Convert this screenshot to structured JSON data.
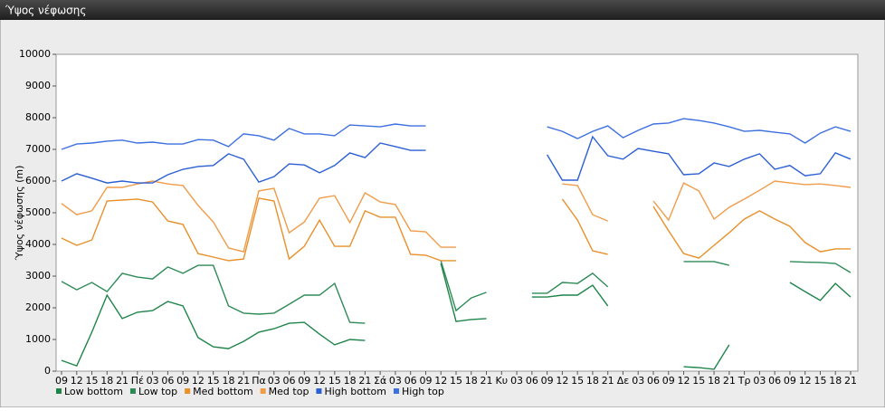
{
  "chart_data": {
    "type": "line",
    "title": "Ύψος νέφωσης",
    "y_label": "Ύψος νέφωσης (m)",
    "categories": [
      "09",
      "12",
      "15",
      "18",
      "21",
      "Πέ",
      "03",
      "06",
      "09",
      "12",
      "15",
      "18",
      "21",
      "Πα",
      "03",
      "06",
      "09",
      "12",
      "15",
      "18",
      "21",
      "Σά",
      "03",
      "06",
      "09",
      "12",
      "15",
      "18",
      "21",
      "Κυ",
      "03",
      "06",
      "09",
      "12",
      "15",
      "18",
      "21",
      "Δε",
      "03",
      "06",
      "09",
      "12",
      "15",
      "18",
      "21",
      "Τρ",
      "03",
      "06",
      "09",
      "12",
      "15",
      "18",
      "21"
    ],
    "ylim": [
      0,
      10000
    ],
    "yticks": [
      0,
      1000,
      2000,
      3000,
      4000,
      5000,
      6000,
      7000,
      8000,
      9000,
      10000
    ],
    "grid": false,
    "series": [
      {
        "name": "Low bottom",
        "color": "#1e8449",
        "values": [
          340,
          170,
          1230,
          2400,
          1660,
          1860,
          1910,
          2200,
          2060,
          1060,
          770,
          710,
          940,
          1230,
          1340,
          1510,
          1540,
          1170,
          830,
          1000,
          970,
          null,
          null,
          null,
          null,
          3400,
          1570,
          1630,
          1660,
          null,
          null,
          2340,
          2340,
          2400,
          2400,
          2710,
          2060,
          null,
          null,
          null,
          null,
          140,
          110,
          60,
          830,
          null,
          null,
          null,
          2800,
          2510,
          2230,
          2770,
          2340
        ]
      },
      {
        "name": "Low top",
        "color": "#2e8b57",
        "values": [
          2830,
          2570,
          2800,
          2510,
          3090,
          2970,
          2910,
          3290,
          3090,
          3340,
          3340,
          2060,
          1830,
          1800,
          1830,
          2110,
          2400,
          2400,
          2770,
          1540,
          1510,
          null,
          null,
          null,
          null,
          3490,
          1910,
          2310,
          2490,
          null,
          null,
          2460,
          2460,
          2800,
          2770,
          3090,
          2660,
          null,
          null,
          null,
          null,
          3460,
          3460,
          3460,
          3340,
          null,
          null,
          null,
          3460,
          3440,
          3430,
          3400,
          3110
        ]
      },
      {
        "name": "Med bottom",
        "color": "#e8902a",
        "values": [
          4200,
          3970,
          4140,
          5370,
          5400,
          5430,
          5340,
          4740,
          4630,
          3710,
          3600,
          3490,
          3540,
          5460,
          5370,
          3540,
          3940,
          4770,
          3940,
          3940,
          5060,
          4860,
          4860,
          3690,
          3660,
          3490,
          3490,
          null,
          null,
          null,
          null,
          null,
          null,
          5430,
          4770,
          3800,
          3690,
          null,
          null,
          5200,
          4430,
          3710,
          3570,
          3970,
          4370,
          4800,
          5060,
          4800,
          4570,
          4060,
          3770,
          3860,
          3860
        ]
      },
      {
        "name": "Med top",
        "color": "#f09c4a",
        "values": [
          5290,
          4940,
          5060,
          5800,
          5800,
          5910,
          6000,
          5910,
          5860,
          5230,
          4710,
          3890,
          3770,
          5690,
          5770,
          4370,
          4710,
          5460,
          5540,
          4690,
          5630,
          5340,
          5260,
          4430,
          4400,
          3910,
          3910,
          null,
          null,
          null,
          null,
          null,
          null,
          5910,
          5860,
          4940,
          4740,
          null,
          null,
          5370,
          4770,
          5940,
          5690,
          4800,
          5170,
          5430,
          5710,
          6000,
          5940,
          5890,
          5910,
          5860,
          5800
        ]
      },
      {
        "name": "High bottom",
        "color": "#2b5fd4",
        "values": [
          6000,
          6230,
          6090,
          5940,
          6000,
          5940,
          5940,
          6200,
          6370,
          6460,
          6490,
          6860,
          6690,
          5970,
          6140,
          6540,
          6510,
          6260,
          6490,
          6890,
          6740,
          7200,
          7090,
          6970,
          6970,
          null,
          null,
          null,
          null,
          null,
          null,
          null,
          6830,
          6030,
          6030,
          7400,
          6800,
          6690,
          7030,
          6940,
          6860,
          6200,
          6230,
          6570,
          6460,
          6690,
          6860,
          6370,
          6490,
          6170,
          6230,
          6890,
          6690
        ]
      },
      {
        "name": "High top",
        "color": "#3d70e0",
        "values": [
          7000,
          7170,
          7200,
          7260,
          7290,
          7200,
          7230,
          7170,
          7170,
          7310,
          7290,
          7090,
          7490,
          7430,
          7290,
          7660,
          7490,
          7490,
          7430,
          7770,
          7740,
          7710,
          7800,
          7740,
          7740,
          null,
          null,
          null,
          null,
          null,
          null,
          null,
          7710,
          7570,
          7340,
          7570,
          7740,
          7370,
          7600,
          7800,
          7830,
          7970,
          7910,
          7830,
          7710,
          7570,
          7600,
          7540,
          7490,
          7200,
          7510,
          7710,
          7570
        ]
      }
    ]
  }
}
